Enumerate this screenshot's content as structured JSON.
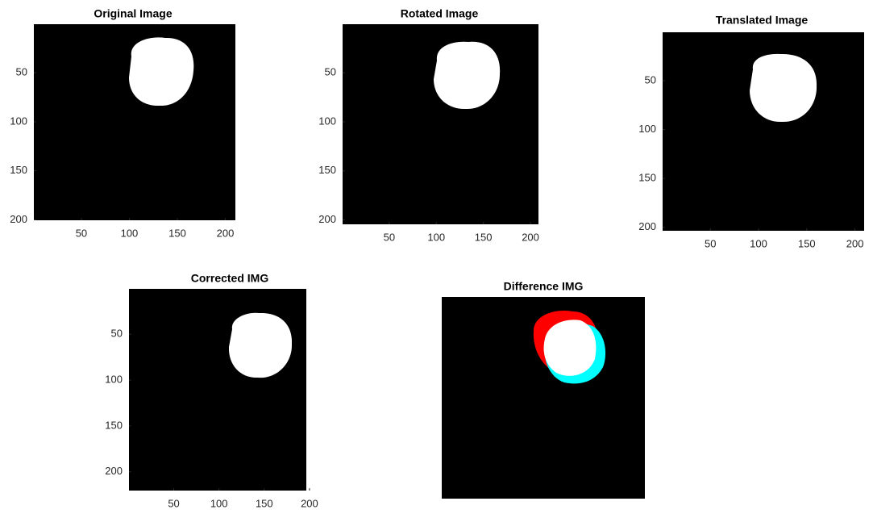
{
  "chart_data": [
    {
      "type": "image",
      "title": "Original Image",
      "xlim": [
        0.5,
        210.5
      ],
      "ylim": [
        0.5,
        200.5
      ],
      "xticks": [
        50,
        100,
        150,
        200
      ],
      "yticks": [
        50,
        100,
        150,
        200
      ]
    },
    {
      "type": "image",
      "title": "Rotated Image",
      "xlim": [
        0.5,
        208.5
      ],
      "ylim": [
        0.5,
        204.5
      ],
      "xticks": [
        50,
        100,
        150,
        200
      ],
      "yticks": [
        50,
        100,
        150,
        200
      ]
    },
    {
      "type": "image",
      "title": "Translated Image",
      "xlim": [
        0.5,
        209.5
      ],
      "ylim": [
        0.5,
        203.5
      ],
      "xticks": [
        50,
        100,
        150,
        200
      ],
      "yticks": [
        50,
        100,
        150,
        200
      ]
    },
    {
      "type": "image",
      "title": "Corrected IMG",
      "xlim": [
        0.5,
        196.5
      ],
      "ylim": [
        0.5,
        220.5
      ],
      "xticks": [
        50,
        100,
        150,
        200
      ],
      "yticks": [
        50,
        100,
        150,
        200
      ]
    },
    {
      "type": "image",
      "title": "Difference IMG"
    }
  ]
}
